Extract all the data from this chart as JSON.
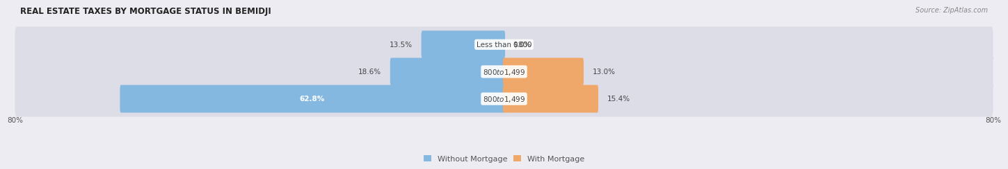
{
  "title": "REAL ESTATE TAXES BY MORTGAGE STATUS IN BEMIDJI",
  "source": "Source: ZipAtlas.com",
  "rows": [
    {
      "label": "Less than $800",
      "without_mortgage": 13.5,
      "with_mortgage": 0.0
    },
    {
      "label": "$800 to $1,499",
      "without_mortgage": 18.6,
      "with_mortgage": 13.0
    },
    {
      "label": "$800 to $1,499",
      "without_mortgage": 62.8,
      "with_mortgage": 15.4
    }
  ],
  "x_max": 80.0,
  "x_min": -80.0,
  "color_without": "#85b8e0",
  "color_with": "#f0a86a",
  "bg_color": "#ececf2",
  "bar_bg_color": "#dddde8",
  "bar_bg_color_alt": "#e8e8f0",
  "title_fontsize": 8.5,
  "source_fontsize": 7,
  "label_fontsize": 7.5,
  "pct_fontsize": 7.5,
  "tick_fontsize": 7.5,
  "legend_fontsize": 8
}
